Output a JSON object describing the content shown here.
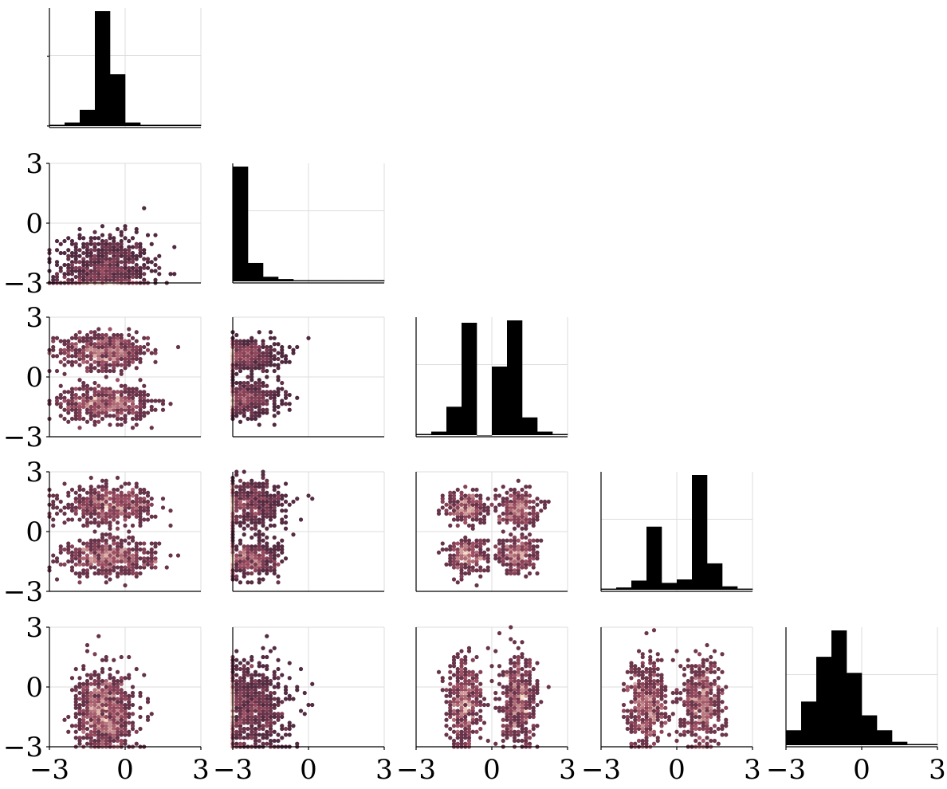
{
  "colors": {
    "background": "#ffffff",
    "axis": "#000000",
    "grid": "#dcdcdc",
    "histogram": "#000000",
    "density_low": "#2d1b31",
    "density_mid": "#9a4a5f",
    "density_high": "#f7ddc7"
  },
  "chart_data": {
    "type": "corner",
    "n_dims": 5,
    "axis_range": [
      -3,
      3
    ],
    "ticks": [
      -3,
      0,
      3
    ],
    "tick_labels": [
      "−3",
      "0",
      "3"
    ],
    "grid": true,
    "histograms": [
      {
        "bins": [
          -3.0,
          -2.4,
          -1.8,
          -1.2,
          -0.6,
          0.0,
          0.6,
          1.2,
          1.8,
          2.4,
          3.0
        ],
        "counts": [
          0.01,
          0.03,
          0.14,
          1.0,
          0.45,
          0.03,
          0.01,
          0.01,
          0.01,
          0.01
        ]
      },
      {
        "bins": [
          -3.0,
          -2.4,
          -1.8,
          -1.2,
          -0.6,
          0.0,
          0.6,
          1.2,
          1.8,
          2.4,
          3.0
        ],
        "counts": [
          1.0,
          0.16,
          0.04,
          0.02,
          0.01,
          0.01,
          0.01,
          0.01,
          0.01,
          0.01
        ]
      },
      {
        "bins": [
          -3.0,
          -2.4,
          -1.8,
          -1.2,
          -0.6,
          0.0,
          0.6,
          1.2,
          1.8,
          2.4,
          3.0
        ],
        "counts": [
          0.01,
          0.03,
          0.24,
          0.95,
          0.0,
          0.58,
          0.97,
          0.15,
          0.03,
          0.01
        ]
      },
      {
        "bins": [
          -3.0,
          -2.4,
          -1.8,
          -1.2,
          -0.6,
          0.0,
          0.6,
          1.2,
          1.8,
          2.4,
          3.0
        ],
        "counts": [
          0.01,
          0.02,
          0.08,
          0.55,
          0.06,
          0.09,
          1.0,
          0.23,
          0.03,
          0.01
        ]
      },
      {
        "bins": [
          -3.0,
          -2.4,
          -1.8,
          -1.2,
          -0.6,
          0.0,
          0.6,
          1.2,
          1.8,
          2.4,
          3.0
        ],
        "counts": [
          0.13,
          0.38,
          0.77,
          1.0,
          0.63,
          0.26,
          0.13,
          0.03,
          0.01,
          0.01
        ]
      }
    ],
    "density_panels": [
      {
        "row": 1,
        "col": 0,
        "clusters": [
          {
            "cx": -0.8,
            "cy": -2.4,
            "sx": 0.9,
            "sy": 0.9,
            "n": 900
          }
        ]
      },
      {
        "row": 2,
        "col": 0,
        "clusters": [
          {
            "cx": -0.8,
            "cy": 1.3,
            "sx": 0.9,
            "sy": 0.45,
            "n": 500
          },
          {
            "cx": -0.8,
            "cy": -1.3,
            "sx": 0.9,
            "sy": 0.45,
            "n": 500
          }
        ]
      },
      {
        "row": 2,
        "col": 1,
        "clusters": [
          {
            "cx": -2.5,
            "cy": 1.1,
            "sx": 0.7,
            "sy": 0.4,
            "n": 500
          },
          {
            "cx": -2.5,
            "cy": -1.1,
            "sx": 0.7,
            "sy": 0.4,
            "n": 500
          }
        ]
      },
      {
        "row": 3,
        "col": 0,
        "clusters": [
          {
            "cx": -0.6,
            "cy": 1.3,
            "sx": 0.9,
            "sy": 0.45,
            "n": 500
          },
          {
            "cx": -0.6,
            "cy": -1.3,
            "sx": 0.9,
            "sy": 0.45,
            "n": 500
          }
        ]
      },
      {
        "row": 3,
        "col": 1,
        "clusters": [
          {
            "cx": -2.4,
            "cy": 1.4,
            "sx": 0.8,
            "sy": 0.6,
            "n": 500
          },
          {
            "cx": -2.4,
            "cy": -1.4,
            "sx": 0.6,
            "sy": 0.4,
            "n": 500
          }
        ]
      },
      {
        "row": 3,
        "col": 2,
        "clusters": [
          {
            "cx": -1.0,
            "cy": 1.2,
            "sx": 0.4,
            "sy": 0.45,
            "n": 250
          },
          {
            "cx": 1.0,
            "cy": 1.2,
            "sx": 0.4,
            "sy": 0.45,
            "n": 250
          },
          {
            "cx": -1.0,
            "cy": -1.2,
            "sx": 0.4,
            "sy": 0.45,
            "n": 250
          },
          {
            "cx": 1.0,
            "cy": -1.2,
            "sx": 0.4,
            "sy": 0.45,
            "n": 250
          }
        ]
      },
      {
        "row": 4,
        "col": 0,
        "clusters": [
          {
            "cx": -0.8,
            "cy": -1.3,
            "sx": 0.55,
            "sy": 1.0,
            "n": 900
          }
        ]
      },
      {
        "row": 4,
        "col": 1,
        "clusters": [
          {
            "cx": -2.4,
            "cy": -1.0,
            "sx": 0.8,
            "sy": 1.1,
            "n": 900
          }
        ]
      },
      {
        "row": 4,
        "col": 2,
        "clusters": [
          {
            "cx": -1.1,
            "cy": -0.8,
            "sx": 0.35,
            "sy": 1.1,
            "n": 450
          },
          {
            "cx": 1.1,
            "cy": -0.8,
            "sx": 0.35,
            "sy": 1.1,
            "n": 450
          }
        ]
      },
      {
        "row": 4,
        "col": 3,
        "clusters": [
          {
            "cx": -1.2,
            "cy": -0.8,
            "sx": 0.4,
            "sy": 1.1,
            "n": 450
          },
          {
            "cx": 1.0,
            "cy": -0.8,
            "sx": 0.4,
            "sy": 1.1,
            "n": 450
          }
        ]
      }
    ]
  }
}
